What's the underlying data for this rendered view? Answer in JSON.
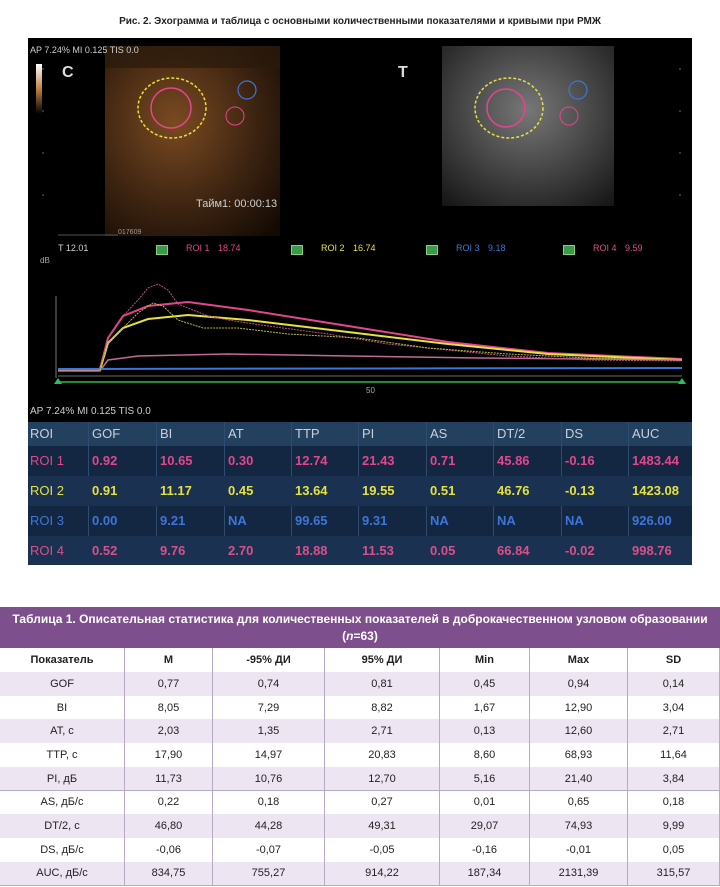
{
  "caption": "Рис. 2. Эхограмма и таблица с основными количественными показателями и кривыми при РМЖ",
  "figure": {
    "header_text": "AP 7.24%  MI 0.125  TIS 0.0",
    "left_label": "C",
    "right_label": "T",
    "timer": "Тайм1: 00:00:13",
    "frame": "017609",
    "t_value": "T 12.01",
    "legend": [
      {
        "label": "ROI 1",
        "value": "18.74"
      },
      {
        "label": "ROI 2",
        "value": "16.74"
      },
      {
        "label": "ROI 3",
        "value": "9.18"
      },
      {
        "label": "ROI 4",
        "value": "9.59"
      }
    ],
    "y_unit": "dB",
    "x_tick": "50",
    "footer_text": "AP 7.24%  MI 0.125  TIS 0.0",
    "table": {
      "columns": [
        "ROI",
        "GOF",
        "BI",
        "AT",
        "TTP",
        "PI",
        "AS",
        "DT/2",
        "DS",
        "AUC"
      ],
      "rows": [
        [
          "ROI 1",
          "0.92",
          "10.65",
          "0.30",
          "12.74",
          "21.43",
          "0.71",
          "45.86",
          "-0.16",
          "1483.44"
        ],
        [
          "ROI 2",
          "0.91",
          "11.17",
          "0.45",
          "13.64",
          "19.55",
          "0.51",
          "46.76",
          "-0.13",
          "1423.08"
        ],
        [
          "ROI 3",
          "0.00",
          "9.21",
          "NA",
          "99.65",
          "9.31",
          "NA",
          "NA",
          "NA",
          "926.00"
        ],
        [
          "ROI 4",
          "0.52",
          "9.76",
          "2.70",
          "18.88",
          "11.53",
          "0.05",
          "66.84",
          "-0.02",
          "998.76"
        ]
      ]
    }
  },
  "table1": {
    "title_start": "Таблица 1. Описательная статистика для количественных показателей в доброкачественном узловом образовании (",
    "title_n": "n",
    "title_end": "=63)",
    "columns": [
      "Показатель",
      "M",
      "-95% ДИ",
      "95% ДИ",
      "Min",
      "Max",
      "SD"
    ],
    "rows": [
      [
        "GOF",
        "0,77",
        "0,74",
        "0,81",
        "0,45",
        "0,94",
        "0,14"
      ],
      [
        "BI",
        "8,05",
        "7,29",
        "8,82",
        "1,67",
        "12,90",
        "3,04"
      ],
      [
        "AT, с",
        "2,03",
        "1,35",
        "2,71",
        "0,13",
        "12,60",
        "2,71"
      ],
      [
        "TTP, с",
        "17,90",
        "14,97",
        "20,83",
        "8,60",
        "68,93",
        "11,64"
      ],
      [
        "PI, дБ",
        "11,73",
        "10,76",
        "12,70",
        "5,16",
        "21,40",
        "3,84"
      ],
      [
        "AS, дБ/с",
        "0,22",
        "0,18",
        "0,27",
        "0,01",
        "0,65",
        "0,18"
      ],
      [
        "DT/2, с",
        "46,80",
        "44,28",
        "49,31",
        "29,07",
        "74,93",
        "9,99"
      ],
      [
        "DS, дБ/с",
        "-0,06",
        "-0,07",
        "-0,05",
        "-0,16",
        "-0,01",
        "0,05"
      ],
      [
        "AUC, дБ/с",
        "834,75",
        "755,27",
        "914,22",
        "187,34",
        "2131,39",
        "315,57"
      ]
    ]
  }
}
